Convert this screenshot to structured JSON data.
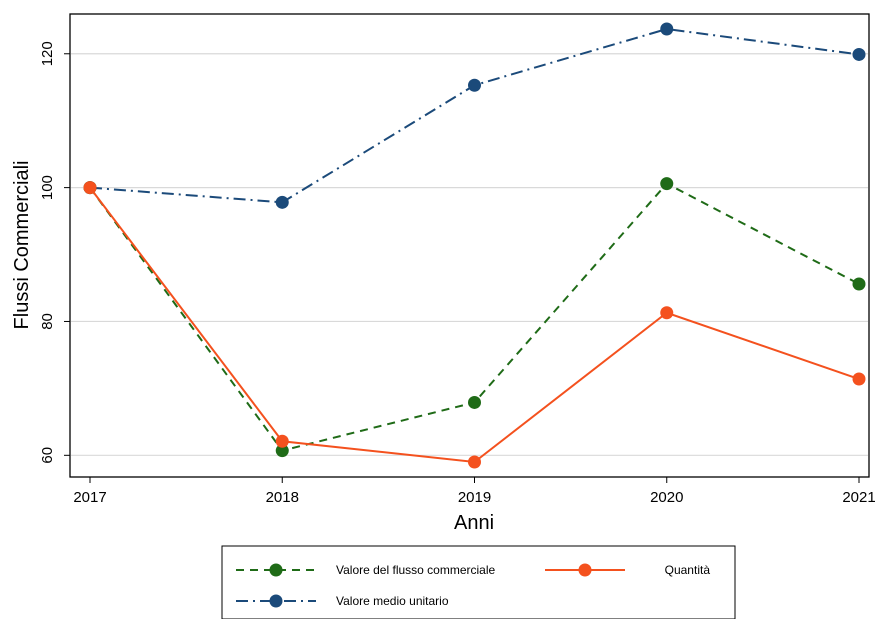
{
  "chart_data": {
    "type": "line",
    "title": "",
    "xlabel": "Anni",
    "ylabel": "Flussi Commerciali",
    "x": [
      2017,
      2018,
      2019,
      2020,
      2021
    ],
    "xlim": [
      2017,
      2021
    ],
    "ylim": [
      59,
      124
    ],
    "yticks": [
      60,
      80,
      100,
      120
    ],
    "xticks": [
      2017,
      2018,
      2019,
      2020,
      2021
    ],
    "grid": true,
    "legend_position": "bottom",
    "series": [
      {
        "name": "Valore del flusso commerciale",
        "values": [
          100,
          60.7,
          67.9,
          100.6,
          85.6
        ],
        "color": "#1f6b17",
        "line_style": "dashed"
      },
      {
        "name": "Quantità",
        "values": [
          100,
          62.1,
          59.0,
          81.3,
          71.4
        ],
        "color": "#f4511e",
        "line_style": "solid"
      },
      {
        "name": "Valore medio unitario",
        "values": [
          100,
          97.8,
          115.3,
          123.7,
          119.9
        ],
        "color": "#1b4a7a",
        "line_style": "dash-dot"
      }
    ]
  }
}
